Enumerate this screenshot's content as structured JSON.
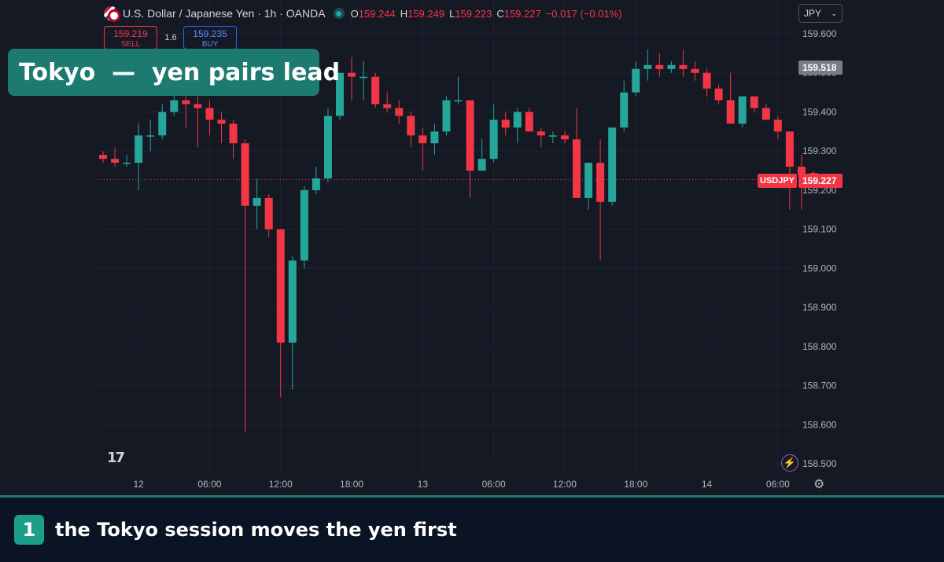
{
  "legend": {
    "symbol_title": "U.S. Dollar / Japanese Yen · 1h · OANDA",
    "open_label": "O",
    "open": "159.244",
    "high_label": "H",
    "high": "159.249",
    "low_label": "L",
    "low": "159.223",
    "close_label": "C",
    "close": "159.227",
    "change": "−0.017 (−0.01%)"
  },
  "trade": {
    "sell_price": "159.219",
    "sell_label": "SELL",
    "spread": "1.6",
    "buy_price": "159.235",
    "buy_label": "BUY"
  },
  "banner": {
    "title": "Tokyo  —  yen pairs lead"
  },
  "currency_select": {
    "value": "JPY",
    "chevron": "⌄"
  },
  "price_tags": {
    "last": "159.518",
    "current": "159.227",
    "symbol": "USDJPY"
  },
  "logo": {
    "text": "17"
  },
  "footer": {
    "step": "1",
    "caption": "the Tokyo session moves the yen first"
  },
  "colors": {
    "up": "#26a69a",
    "down": "#f23645",
    "accent": "#1d7a70",
    "background": "#151924"
  },
  "icons": [
    "flag-icon",
    "status-dot-icon",
    "lightning-icon",
    "gear-icon",
    "tradingview-logo-icon"
  ],
  "chart_data": {
    "type": "candlestick",
    "timeframe": "1h",
    "y_ticks": [
      "159.600",
      "159.500",
      "159.400",
      "159.300",
      "159.200",
      "159.100",
      "159.000",
      "158.900",
      "158.800",
      "158.700",
      "158.600",
      "158.500"
    ],
    "ylim": [
      158.5,
      159.6
    ],
    "x_tick_labels": [
      {
        "label": "12",
        "bar": 3
      },
      {
        "label": "06:00",
        "bar": 9
      },
      {
        "label": "12:00",
        "bar": 15
      },
      {
        "label": "18:00",
        "bar": 21
      },
      {
        "label": "13",
        "bar": 27
      },
      {
        "label": "06:00",
        "bar": 33
      },
      {
        "label": "12:00",
        "bar": 39
      },
      {
        "label": "18:00",
        "bar": 45
      },
      {
        "label": "14",
        "bar": 51
      },
      {
        "label": "06:00",
        "bar": 57
      }
    ],
    "current_price": 159.227,
    "candles": [
      {
        "o": 159.29,
        "h": 159.3,
        "l": 159.27,
        "c": 159.28
      },
      {
        "o": 159.28,
        "h": 159.31,
        "l": 159.26,
        "c": 159.27
      },
      {
        "o": 159.27,
        "h": 159.29,
        "l": 159.26,
        "c": 159.27
      },
      {
        "o": 159.27,
        "h": 159.37,
        "l": 159.2,
        "c": 159.34
      },
      {
        "o": 159.34,
        "h": 159.38,
        "l": 159.3,
        "c": 159.34
      },
      {
        "o": 159.34,
        "h": 159.42,
        "l": 159.33,
        "c": 159.4
      },
      {
        "o": 159.4,
        "h": 159.46,
        "l": 159.39,
        "c": 159.43
      },
      {
        "o": 159.43,
        "h": 159.44,
        "l": 159.36,
        "c": 159.42
      },
      {
        "o": 159.42,
        "h": 159.44,
        "l": 159.31,
        "c": 159.41
      },
      {
        "o": 159.41,
        "h": 159.43,
        "l": 159.34,
        "c": 159.38
      },
      {
        "o": 159.38,
        "h": 159.4,
        "l": 159.32,
        "c": 159.37
      },
      {
        "o": 159.37,
        "h": 159.38,
        "l": 159.28,
        "c": 159.32
      },
      {
        "o": 159.32,
        "h": 159.33,
        "l": 158.58,
        "c": 159.16
      },
      {
        "o": 159.16,
        "h": 159.23,
        "l": 159.1,
        "c": 159.18
      },
      {
        "o": 159.18,
        "h": 159.19,
        "l": 159.08,
        "c": 159.1
      },
      {
        "o": 159.1,
        "h": 159.1,
        "l": 158.67,
        "c": 158.81
      },
      {
        "o": 158.81,
        "h": 159.03,
        "l": 158.69,
        "c": 159.02
      },
      {
        "o": 159.02,
        "h": 159.21,
        "l": 159.0,
        "c": 159.2
      },
      {
        "o": 159.2,
        "h": 159.26,
        "l": 159.19,
        "c": 159.23
      },
      {
        "o": 159.23,
        "h": 159.41,
        "l": 159.22,
        "c": 159.39
      },
      {
        "o": 159.39,
        "h": 159.5,
        "l": 159.38,
        "c": 159.5
      },
      {
        "o": 159.5,
        "h": 159.54,
        "l": 159.43,
        "c": 159.49
      },
      {
        "o": 159.49,
        "h": 159.53,
        "l": 159.43,
        "c": 159.49
      },
      {
        "o": 159.49,
        "h": 159.5,
        "l": 159.41,
        "c": 159.42
      },
      {
        "o": 159.42,
        "h": 159.45,
        "l": 159.4,
        "c": 159.41
      },
      {
        "o": 159.41,
        "h": 159.43,
        "l": 159.37,
        "c": 159.39
      },
      {
        "o": 159.39,
        "h": 159.4,
        "l": 159.31,
        "c": 159.34
      },
      {
        "o": 159.34,
        "h": 159.36,
        "l": 159.25,
        "c": 159.32
      },
      {
        "o": 159.32,
        "h": 159.37,
        "l": 159.29,
        "c": 159.35
      },
      {
        "o": 159.35,
        "h": 159.44,
        "l": 159.34,
        "c": 159.43
      },
      {
        "o": 159.43,
        "h": 159.49,
        "l": 159.42,
        "c": 159.43
      },
      {
        "o": 159.43,
        "h": 159.43,
        "l": 159.18,
        "c": 159.25
      },
      {
        "o": 159.25,
        "h": 159.33,
        "l": 159.25,
        "c": 159.28
      },
      {
        "o": 159.28,
        "h": 159.42,
        "l": 159.27,
        "c": 159.38
      },
      {
        "o": 159.38,
        "h": 159.4,
        "l": 159.34,
        "c": 159.36
      },
      {
        "o": 159.36,
        "h": 159.41,
        "l": 159.32,
        "c": 159.4
      },
      {
        "o": 159.4,
        "h": 159.41,
        "l": 159.35,
        "c": 159.35
      },
      {
        "o": 159.35,
        "h": 159.36,
        "l": 159.31,
        "c": 159.34
      },
      {
        "o": 159.34,
        "h": 159.35,
        "l": 159.32,
        "c": 159.34
      },
      {
        "o": 159.34,
        "h": 159.35,
        "l": 159.32,
        "c": 159.33
      },
      {
        "o": 159.33,
        "h": 159.41,
        "l": 159.18,
        "c": 159.18
      },
      {
        "o": 159.18,
        "h": 159.27,
        "l": 159.15,
        "c": 159.27
      },
      {
        "o": 159.27,
        "h": 159.33,
        "l": 159.02,
        "c": 159.17
      },
      {
        "o": 159.17,
        "h": 159.36,
        "l": 159.16,
        "c": 159.36
      },
      {
        "o": 159.36,
        "h": 159.48,
        "l": 159.35,
        "c": 159.45
      },
      {
        "o": 159.45,
        "h": 159.53,
        "l": 159.44,
        "c": 159.51
      },
      {
        "o": 159.51,
        "h": 159.56,
        "l": 159.48,
        "c": 159.52
      },
      {
        "o": 159.52,
        "h": 159.55,
        "l": 159.49,
        "c": 159.51
      },
      {
        "o": 159.51,
        "h": 159.53,
        "l": 159.5,
        "c": 159.52
      },
      {
        "o": 159.52,
        "h": 159.56,
        "l": 159.49,
        "c": 159.51
      },
      {
        "o": 159.51,
        "h": 159.53,
        "l": 159.48,
        "c": 159.5
      },
      {
        "o": 159.5,
        "h": 159.51,
        "l": 159.44,
        "c": 159.46
      },
      {
        "o": 159.46,
        "h": 159.47,
        "l": 159.42,
        "c": 159.43
      },
      {
        "o": 159.43,
        "h": 159.5,
        "l": 159.37,
        "c": 159.37
      },
      {
        "o": 159.37,
        "h": 159.44,
        "l": 159.36,
        "c": 159.44
      },
      {
        "o": 159.44,
        "h": 159.44,
        "l": 159.4,
        "c": 159.41
      },
      {
        "o": 159.41,
        "h": 159.42,
        "l": 159.38,
        "c": 159.38
      },
      {
        "o": 159.38,
        "h": 159.39,
        "l": 159.33,
        "c": 159.35
      },
      {
        "o": 159.35,
        "h": 159.35,
        "l": 159.15,
        "c": 159.26
      },
      {
        "o": 159.26,
        "h": 159.29,
        "l": 159.15,
        "c": 159.24
      },
      {
        "o": 159.244,
        "h": 159.249,
        "l": 159.223,
        "c": 159.227
      }
    ]
  }
}
